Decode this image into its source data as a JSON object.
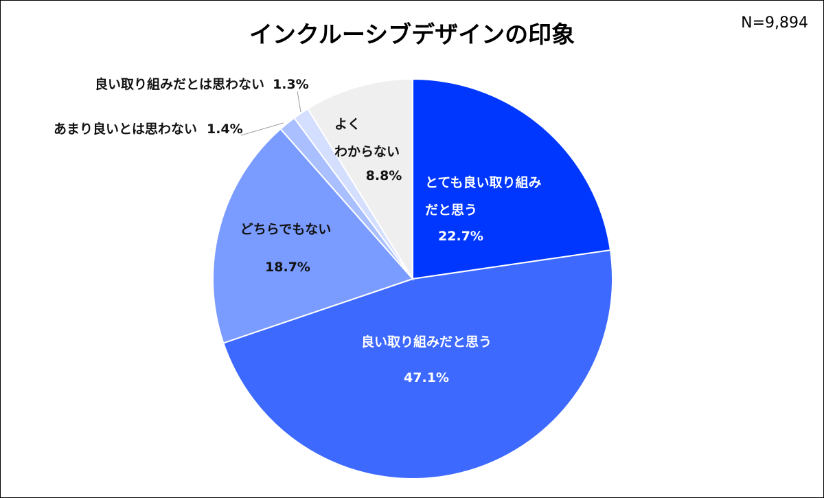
{
  "chart_data": {
    "type": "pie",
    "title": "インクルーシブデザインの印象",
    "annotation": "N=9,894",
    "categories": [
      "とても良い取り組み\nだと思う",
      "良い取り組みだと思う",
      "どちらでもない",
      "あまり良いとは思わない",
      "良い取り組みだとは思わない",
      "よく\nわからない"
    ],
    "values": [
      22.7,
      47.1,
      18.7,
      1.4,
      1.3,
      8.8
    ],
    "value_labels": [
      "22.7%",
      "47.1%",
      "18.7%",
      "1.4%",
      "1.3%",
      "8.8%"
    ],
    "colors": [
      "#0037ff",
      "#3d69ff",
      "#7a9bff",
      "#aabfff",
      "#d4deff",
      "#efefef"
    ]
  }
}
